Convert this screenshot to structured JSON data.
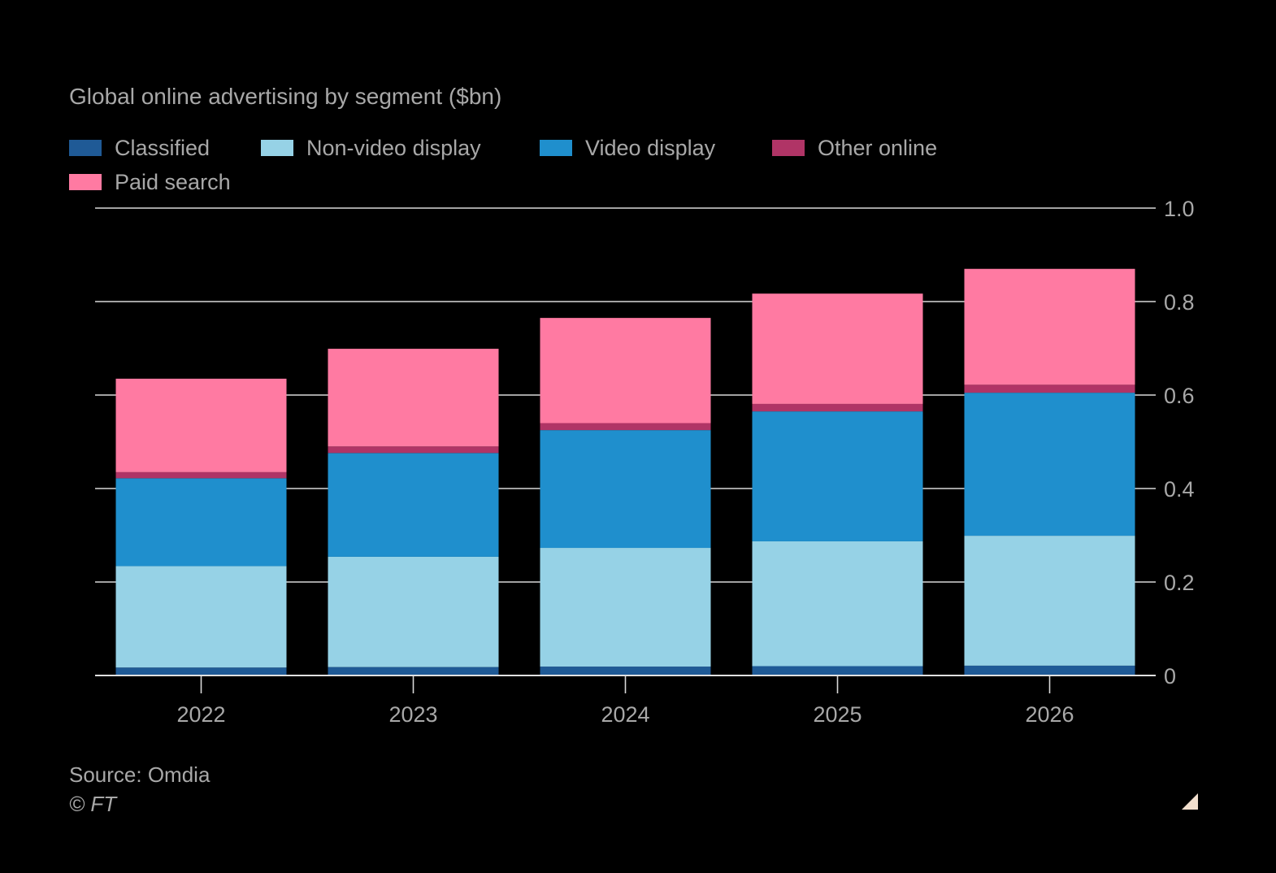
{
  "chart_data": {
    "type": "bar",
    "stacked": true,
    "title": "Global online advertising by segment ($bn)",
    "categories": [
      "2022",
      "2023",
      "2024",
      "2025",
      "2026"
    ],
    "series": [
      {
        "name": "Classified",
        "color": "#1f5a96",
        "values": [
          0.017,
          0.018,
          0.019,
          0.02,
          0.021
        ]
      },
      {
        "name": "Non-video display",
        "color": "#96d2e6",
        "values": [
          0.217,
          0.236,
          0.254,
          0.267,
          0.278
        ]
      },
      {
        "name": "Video display",
        "color": "#1f8fcd",
        "values": [
          0.188,
          0.222,
          0.252,
          0.278,
          0.306
        ]
      },
      {
        "name": "Other online",
        "color": "#b03466",
        "values": [
          0.013,
          0.014,
          0.015,
          0.016,
          0.017
        ]
      },
      {
        "name": "Paid search",
        "color": "#ff7aa2",
        "values": [
          0.2,
          0.209,
          0.225,
          0.236,
          0.248
        ]
      }
    ],
    "ylim": [
      0,
      1.0
    ],
    "yticks": [
      "0",
      "0.2",
      "0.4",
      "0.6",
      "0.8",
      "1.0"
    ],
    "ytick_values": [
      0,
      0.2,
      0.4,
      0.6,
      0.8,
      1.0
    ],
    "xlabel": "",
    "ylabel": "",
    "grid": true,
    "y_axis_side": "right"
  },
  "footer": {
    "source": "Source: Omdia",
    "copyright": "© FT"
  }
}
